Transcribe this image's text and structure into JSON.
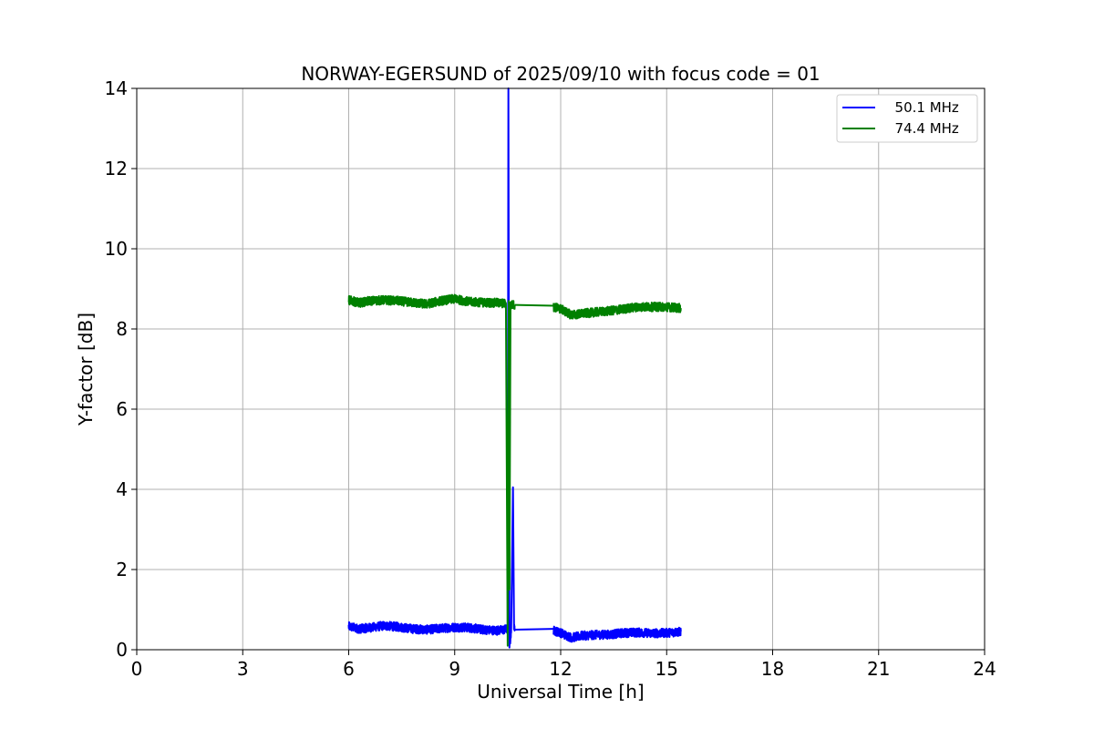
{
  "chart_data": {
    "type": "line",
    "title": "NORWAY-EGERSUND of 2025/09/10 with focus code = 01",
    "xlabel": "Universal Time [h]",
    "ylabel": "Y-factor [dB]",
    "xlim": [
      0,
      24
    ],
    "ylim": [
      0,
      14
    ],
    "xticks": [
      0,
      3,
      6,
      9,
      12,
      15,
      18,
      21,
      24
    ],
    "yticks": [
      0,
      2,
      4,
      6,
      8,
      10,
      12,
      14
    ],
    "grid": true,
    "legend_position": "top-right",
    "series": [
      {
        "name": "  50.1 MHz",
        "color": "#0000ff",
        "segments": [
          [
            [
              6.0,
              0.58
            ],
            [
              6.3,
              0.52
            ],
            [
              6.6,
              0.55
            ],
            [
              7.0,
              0.6
            ],
            [
              7.4,
              0.57
            ],
            [
              7.8,
              0.52
            ],
            [
              8.2,
              0.5
            ],
            [
              8.6,
              0.53
            ],
            [
              9.0,
              0.56
            ],
            [
              9.4,
              0.55
            ],
            [
              9.8,
              0.5
            ],
            [
              10.2,
              0.48
            ],
            [
              10.4,
              0.5
            ],
            [
              10.5,
              0.52
            ],
            [
              10.52,
              14.0
            ],
            [
              10.55,
              0.1
            ],
            [
              10.58,
              0.3
            ],
            [
              10.6,
              0.55
            ],
            [
              10.65,
              4.05
            ],
            [
              10.68,
              0.55
            ],
            [
              10.7,
              0.5
            ]
          ],
          [
            [
              10.7,
              0.5
            ],
            [
              11.8,
              0.52
            ]
          ],
          [
            [
              11.8,
              0.48
            ],
            [
              12.0,
              0.42
            ],
            [
              12.3,
              0.3
            ],
            [
              12.6,
              0.35
            ],
            [
              13.0,
              0.37
            ],
            [
              13.4,
              0.38
            ],
            [
              13.8,
              0.42
            ],
            [
              14.2,
              0.43
            ],
            [
              14.6,
              0.41
            ],
            [
              15.0,
              0.42
            ],
            [
              15.4,
              0.45
            ]
          ]
        ]
      },
      {
        "name": "  74.4 MHz",
        "color": "#008000",
        "segments": [
          [
            [
              6.0,
              8.72
            ],
            [
              6.3,
              8.65
            ],
            [
              6.6,
              8.7
            ],
            [
              7.0,
              8.72
            ],
            [
              7.4,
              8.7
            ],
            [
              7.8,
              8.66
            ],
            [
              8.2,
              8.62
            ],
            [
              8.6,
              8.7
            ],
            [
              9.0,
              8.75
            ],
            [
              9.4,
              8.68
            ],
            [
              9.8,
              8.66
            ],
            [
              10.2,
              8.65
            ],
            [
              10.45,
              8.63
            ],
            [
              10.5,
              0.1
            ],
            [
              10.53,
              8.7
            ],
            [
              10.55,
              1.5
            ],
            [
              10.58,
              8.6
            ],
            [
              10.7,
              8.6
            ]
          ],
          [
            [
              10.7,
              8.6
            ],
            [
              11.8,
              8.58
            ]
          ],
          [
            [
              11.8,
              8.55
            ],
            [
              12.0,
              8.5
            ],
            [
              12.3,
              8.35
            ],
            [
              12.6,
              8.38
            ],
            [
              13.0,
              8.42
            ],
            [
              13.4,
              8.45
            ],
            [
              13.8,
              8.5
            ],
            [
              14.2,
              8.55
            ],
            [
              14.6,
              8.55
            ],
            [
              15.0,
              8.55
            ],
            [
              15.4,
              8.52
            ]
          ]
        ]
      }
    ]
  }
}
